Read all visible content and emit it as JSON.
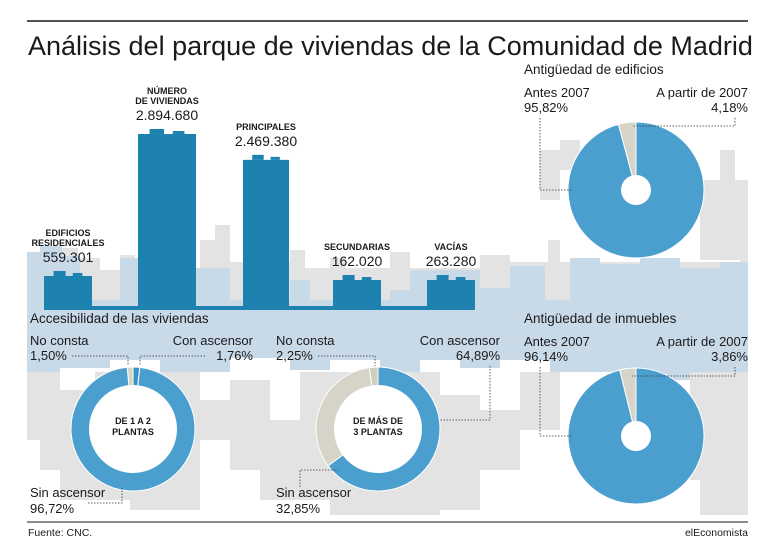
{
  "title": "Análisis del parque de viviendas de la Comunidad de Madrid",
  "footer": {
    "source": "Fuente: CNC.",
    "brand": "elEconomista"
  },
  "colors": {
    "blue": "#1d82b0",
    "donut_blue": "#4a9fcf",
    "grey": "#d6d4c8",
    "skyline_light": "#c8d9e8",
    "skyline_grey": "#e3e3e3"
  },
  "chart_data": [
    {
      "type": "bar",
      "title": "",
      "categories": [
        "EDIFICIOS RESIDENCIALES",
        "NÚMERO DE VIVIENDAS",
        "PRINCIPALES",
        "SECUNDARIAS",
        "VACÍAS"
      ],
      "values": [
        559301,
        2894680,
        2469380,
        162020,
        263280
      ],
      "value_labels": [
        "559.301",
        "2.894.680",
        "2.469.380",
        "162.020",
        "263.280"
      ],
      "caption_lines": [
        [
          "EDIFICIOS",
          "RESIDENCIALES"
        ],
        [
          "NÚMERO",
          "DE VIVIENDAS"
        ],
        [
          "PRINCIPALES"
        ],
        [
          "SECUNDARIAS"
        ],
        [
          "VACÍAS"
        ]
      ]
    },
    {
      "type": "pie",
      "title": "Antigüedad de edificios",
      "slices": [
        {
          "label": "Antes 2007",
          "value": 95.82,
          "display": "95,82%"
        },
        {
          "label": "A partir de 2007",
          "value": 4.18,
          "display": "4,18%"
        }
      ]
    },
    {
      "type": "pie",
      "title": "Antigüedad de inmuebles",
      "slices": [
        {
          "label": "Antes 2007",
          "value": 96.14,
          "display": "96,14%"
        },
        {
          "label": "A partir de 2007",
          "value": 3.86,
          "display": "3,86%"
        }
      ]
    },
    {
      "type": "pie",
      "title": "Accesibilidad de las viviendas",
      "subtitle": "DE 1 A 2 PLANTAS",
      "center_lines": [
        "DE 1 A 2",
        "PLANTAS"
      ],
      "slices": [
        {
          "label": "No consta",
          "value": 1.5,
          "display": "1,50%"
        },
        {
          "label": "Con ascensor",
          "value": 1.76,
          "display": "1,76%"
        },
        {
          "label": "Sin ascensor",
          "value": 96.72,
          "display": "96,72%"
        }
      ]
    },
    {
      "type": "pie",
      "subtitle": "DE MÁS DE 3 PLANTAS",
      "center_lines": [
        "DE MÁS DE",
        "3 PLANTAS"
      ],
      "slices": [
        {
          "label": "No consta",
          "value": 2.25,
          "display": "2,25%"
        },
        {
          "label": "Con ascensor",
          "value": 64.89,
          "display": "64,89%"
        },
        {
          "label": "Sin ascensor",
          "value": 32.85,
          "display": "32,85%"
        }
      ]
    }
  ]
}
